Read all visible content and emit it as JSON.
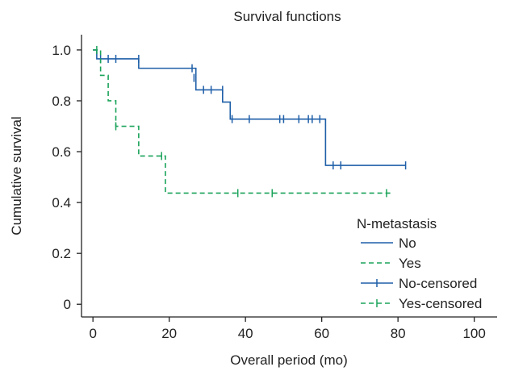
{
  "chart_data": {
    "type": "line",
    "title": "Survival functions",
    "xlabel": "Overall period (mo)",
    "ylabel": "Cumulative survival",
    "xlim": [
      -3,
      106
    ],
    "ylim": [
      -0.05,
      1.06
    ],
    "xticks": [
      "0",
      "20",
      "40",
      "60",
      "80",
      "100"
    ],
    "xtick_values": [
      0,
      20,
      40,
      60,
      80,
      100
    ],
    "yticks": [
      "0",
      "0.2",
      "0.4",
      "0.6",
      "0.8",
      "1.0"
    ],
    "ytick_values": [
      0,
      0.2,
      0.4,
      0.6,
      0.8,
      1.0
    ],
    "legend": {
      "title": "N-metastasis",
      "placement": "bottom-right",
      "entries": [
        "No",
        "Yes",
        "No-censored",
        "Yes-censored"
      ]
    },
    "series": [
      {
        "name": "No",
        "color": "#1f5fa8",
        "dash": "solid",
        "steps": [
          [
            0,
            1.0
          ],
          [
            1,
            0.965
          ],
          [
            12,
            0.928
          ],
          [
            27,
            0.843
          ],
          [
            34,
            0.795
          ],
          [
            36,
            0.728
          ],
          [
            61,
            0.546
          ],
          [
            82,
            0.546
          ]
        ],
        "censored": [
          [
            2,
            0.965
          ],
          [
            4,
            0.965
          ],
          [
            6,
            0.965
          ],
          [
            12,
            0.965
          ],
          [
            26,
            0.928
          ],
          [
            26.5,
            0.89
          ],
          [
            27,
            0.88
          ],
          [
            29,
            0.843
          ],
          [
            31,
            0.843
          ],
          [
            34,
            0.843
          ],
          [
            36.5,
            0.728
          ],
          [
            41,
            0.728
          ],
          [
            49,
            0.728
          ],
          [
            50,
            0.728
          ],
          [
            54,
            0.728
          ],
          [
            56.5,
            0.728
          ],
          [
            57.5,
            0.728
          ],
          [
            59.5,
            0.728
          ],
          [
            63,
            0.546
          ],
          [
            65,
            0.546
          ],
          [
            82,
            0.546
          ]
        ]
      },
      {
        "name": "Yes",
        "color": "#1aa35a",
        "dash": "dashed",
        "steps": [
          [
            0,
            1.0
          ],
          [
            2,
            0.9
          ],
          [
            4,
            0.8
          ],
          [
            6,
            0.7
          ],
          [
            12,
            0.583
          ],
          [
            19,
            0.437
          ],
          [
            78,
            0.437
          ]
        ],
        "censored": [
          [
            1,
            1.0
          ],
          [
            6,
            0.7
          ],
          [
            18,
            0.583
          ],
          [
            38,
            0.437
          ],
          [
            47,
            0.437
          ],
          [
            77,
            0.437
          ]
        ]
      }
    ]
  }
}
